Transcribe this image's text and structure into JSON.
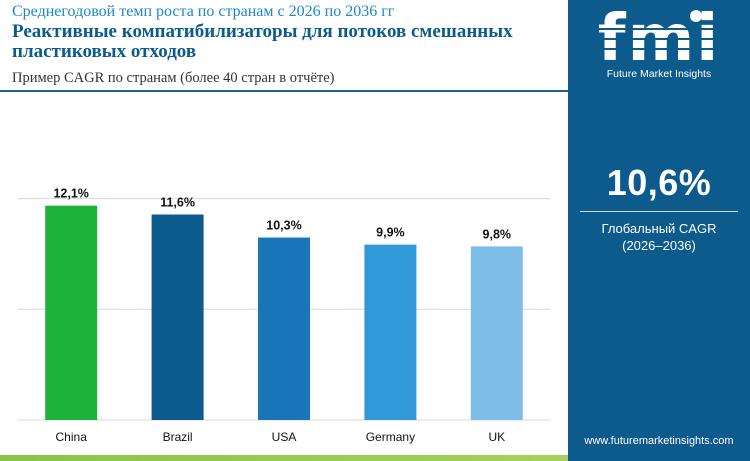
{
  "header": {
    "supertitle": "Среднегодовой темп роста по странам с 2026 по 2036 гг",
    "title": "Реактивные компатибилизаторы для потоков смешанных пластиковых отходов",
    "subtitle": "Пример CAGR по странам (более 40 стран в отчёте)"
  },
  "chart_data": {
    "type": "bar",
    "categories": [
      "China",
      "Brazil",
      "USA",
      "Germany",
      "UK"
    ],
    "values": [
      12.1,
      11.6,
      10.3,
      9.9,
      9.8
    ],
    "value_labels": [
      "12,1%",
      "11,6%",
      "10,3%",
      "9,9%",
      "9,8%"
    ],
    "bar_colors": [
      "#1db33a",
      "#0d5a8c",
      "#1a75b8",
      "#3199d8",
      "#7dbde6"
    ],
    "ylim": [
      0,
      14
    ],
    "grid": true,
    "title": "",
    "xlabel": "",
    "ylabel": ""
  },
  "side_panel": {
    "logo_text": "fmi",
    "logo_caption": "Future Market Insights",
    "stat_value": "10,6%",
    "stat_label": "Глобальный CAGR",
    "stat_period": "(2026–2036)",
    "website": "www.futuremarketinsights.com"
  },
  "colors": {
    "panel_bg": "#0d5a8c",
    "title": "#0d5a8c",
    "supertitle": "#1d87c9",
    "accent_green": "#8bc34a"
  }
}
